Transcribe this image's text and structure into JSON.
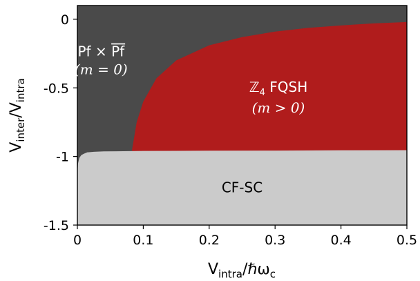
{
  "chart_data": {
    "type": "area",
    "title": "",
    "xlabel": {
      "main": "V",
      "sub": "intra",
      "rest": "/ℏω",
      "rest_sub": "c"
    },
    "ylabel": {
      "main": "V",
      "sub": "inter",
      "rest": "/V",
      "rest_sub": "intra"
    },
    "xlim": [
      0,
      0.5
    ],
    "ylim": [
      -1.5,
      0.1
    ],
    "xticks": [
      {
        "value": 0,
        "label": "0"
      },
      {
        "value": 0.1,
        "label": "0.1"
      },
      {
        "value": 0.2,
        "label": "0.2"
      },
      {
        "value": 0.3,
        "label": "0.3"
      },
      {
        "value": 0.4,
        "label": "0.4"
      },
      {
        "value": 0.5,
        "label": "0.5"
      }
    ],
    "yticks": [
      {
        "value": 0,
        "label": "0"
      },
      {
        "value": -0.5,
        "label": "-0.5"
      },
      {
        "value": -1,
        "label": "-1"
      },
      {
        "value": -1.5,
        "label": "-1.5"
      }
    ],
    "grid": false,
    "colors": {
      "pf_region": "#4a4a4a",
      "fqsh_region": "#b01c1c",
      "cfsc_region": "#cbcbcb",
      "pf_label": "#ffffff",
      "fqsh_label": "#ffffff",
      "cfsc_label": "#000000"
    },
    "phase_boundaries": {
      "fqsh_upper": {
        "x": [
          0.083,
          0.09,
          0.1,
          0.12,
          0.15,
          0.2,
          0.25,
          0.3,
          0.35,
          0.4,
          0.45,
          0.5
        ],
        "y": [
          -0.95,
          -0.75,
          -0.6,
          -0.43,
          -0.3,
          -0.19,
          -0.13,
          -0.09,
          -0.063,
          -0.045,
          -0.03,
          -0.02
        ]
      },
      "cfsc_upper": {
        "x": [
          0,
          0.001,
          0.003,
          0.006,
          0.01,
          0.015,
          0.025,
          0.04,
          0.06,
          0.1,
          0.2,
          0.3,
          0.4,
          0.5
        ],
        "y": [
          -1.13,
          -1.05,
          -1.01,
          -0.99,
          -0.98,
          -0.97,
          -0.966,
          -0.963,
          -0.962,
          -0.96,
          -0.958,
          -0.957,
          -0.955,
          -0.954
        ]
      }
    },
    "annotations": [
      {
        "id": "pf",
        "x": 0.036,
        "y": -0.395,
        "line1_a": "Pf × ",
        "line1_b": "Pf",
        "line2": "(m = 0)"
      },
      {
        "id": "fqsh",
        "x": 0.305,
        "y": -0.68,
        "line1_a": "ℤ",
        "line1_sub": "4",
        "line1_b": " FQSH",
        "line2": "(m > 0)"
      },
      {
        "id": "cfsc",
        "x": 0.25,
        "y": -1.26,
        "line1": "CF-SC"
      }
    ]
  }
}
